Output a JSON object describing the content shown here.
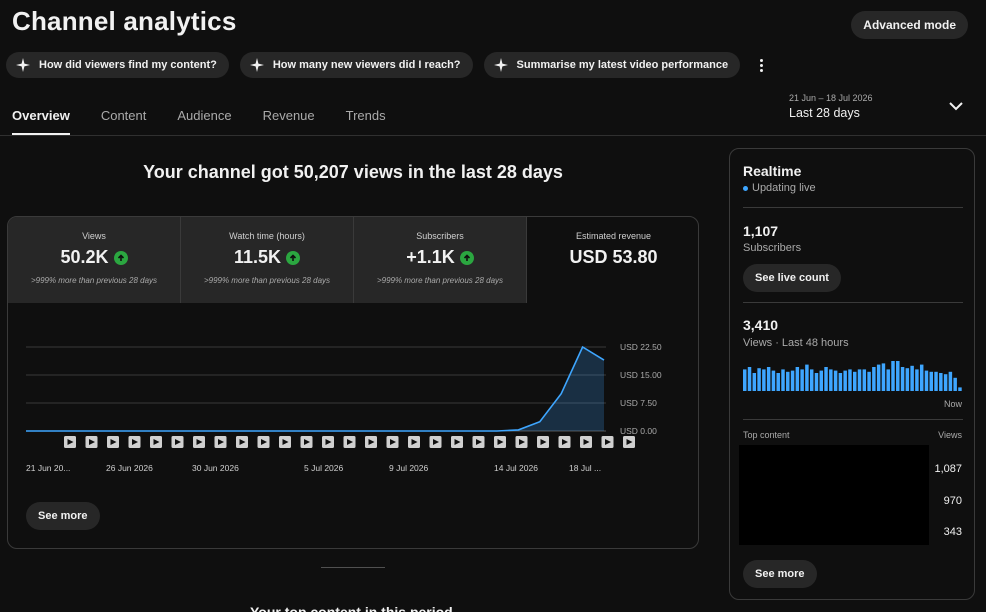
{
  "header": {
    "title": "Channel analytics",
    "advanced_mode": "Advanced mode"
  },
  "chips": [
    {
      "label": "How did viewers find my content?"
    },
    {
      "label": "How many new viewers did I reach?"
    },
    {
      "label": "Summarise my latest video performance"
    }
  ],
  "tabs": [
    {
      "label": "Overview",
      "active": true
    },
    {
      "label": "Content"
    },
    {
      "label": "Audience"
    },
    {
      "label": "Revenue"
    },
    {
      "label": "Trends"
    }
  ],
  "date_range": {
    "dates": "21 Jun – 18 Jul 2026",
    "label": "Last 28 days"
  },
  "headline": "Your channel got 50,207 views in the last 28 days",
  "metrics": [
    {
      "label": "Views",
      "value": "50.2K",
      "note": ">999% more than previous 28 days"
    },
    {
      "label": "Watch time (hours)",
      "value": "11.5K",
      "note": ">999% more than previous 28 days"
    },
    {
      "label": "Subscribers",
      "value": "+1.1K",
      "note": ">999% more than previous 28 days"
    },
    {
      "label": "Estimated revenue",
      "value": "USD 53.80"
    }
  ],
  "chart_data": {
    "type": "area",
    "y_unit": "USD",
    "ylim": [
      0,
      22.5
    ],
    "y_ticks": [
      "USD 22.50",
      "USD 15.00",
      "USD 7.50",
      "USD 0.00"
    ],
    "x_tick_labels": [
      "21 Jun 20...",
      "26 Jun 2026",
      "30 Jun 2026",
      "5 Jul 2026",
      "9 Jul 2026",
      "14 Jul 2026",
      "18 Jul ..."
    ],
    "x": [
      "21 Jun",
      "22 Jun",
      "23 Jun",
      "24 Jun",
      "25 Jun",
      "26 Jun",
      "27 Jun",
      "28 Jun",
      "29 Jun",
      "30 Jun",
      "1 Jul",
      "2 Jul",
      "3 Jul",
      "4 Jul",
      "5 Jul",
      "6 Jul",
      "7 Jul",
      "8 Jul",
      "9 Jul",
      "10 Jul",
      "11 Jul",
      "12 Jul",
      "13 Jul",
      "14 Jul",
      "15 Jul",
      "16 Jul",
      "17 Jul",
      "18 Jul"
    ],
    "values": [
      0,
      0,
      0,
      0,
      0,
      0,
      0,
      0,
      0,
      0,
      0,
      0,
      0,
      0,
      0,
      0,
      0,
      0,
      0,
      0,
      0,
      0,
      0,
      0.3,
      2.5,
      10,
      22.5,
      19
    ],
    "grid": true,
    "video_markers": 27,
    "see_more": "See more"
  },
  "realtime": {
    "title": "Realtime",
    "status": "Updating live",
    "subscribers_value": "1,107",
    "subscribers_label": "Subscribers",
    "see_live_count": "See live count",
    "views_value": "3,410",
    "views_label": "Views · Last 48 hours",
    "spark_values": [
      18,
      20,
      15,
      19,
      18,
      20,
      17,
      15,
      18,
      16,
      17,
      20,
      18,
      22,
      18,
      15,
      17,
      20,
      18,
      17,
      15,
      17,
      18,
      16,
      18,
      18,
      16,
      20,
      22,
      23,
      18,
      25,
      25,
      20,
      19,
      21,
      18,
      22,
      17,
      16,
      16,
      15,
      14,
      16,
      11,
      3
    ],
    "now_label": "Now",
    "top_content_label": "Top content",
    "views_col_label": "Views",
    "top_content_views": [
      "1,087",
      "970",
      "343"
    ],
    "see_more": "See more"
  },
  "footer": {
    "partial_heading": "Your top content in this period"
  }
}
